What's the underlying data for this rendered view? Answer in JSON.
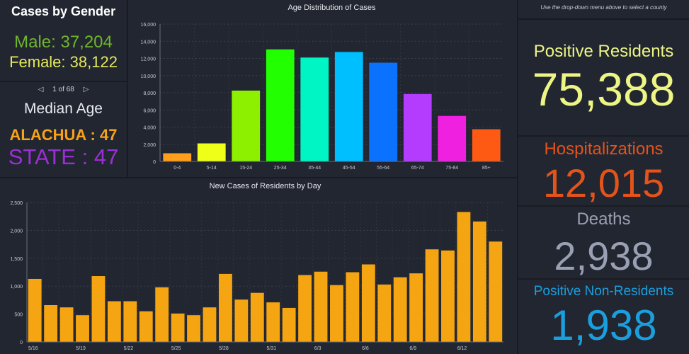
{
  "gender": {
    "title": "Cases by Gender",
    "male": "Male: 37,204",
    "female": "Female: 38,122",
    "male_color": "#6fb52d",
    "female_color": "#e3e85a"
  },
  "median": {
    "pager": "1 of 68",
    "title": "Median Age",
    "county": "ALACHUA : 47",
    "state": "STATE : 47",
    "county_color": "#f7a21b",
    "state_color": "#9b2fd6"
  },
  "right": {
    "hint": "Use the drop-down menu above to select a county",
    "positive_title": "Positive Residents",
    "positive_value": "75,388",
    "hosp_title": "Hospitalizations",
    "hosp_value": "12,015",
    "deaths_title": "Deaths",
    "deaths_value": "2,938",
    "nonres_title": "Positive Non-Residents",
    "nonres_value": "1,938"
  },
  "chart_data": [
    {
      "type": "bar",
      "title": "Age Distribution of Cases",
      "categories": [
        "0-4",
        "5-14",
        "15-24",
        "25-34",
        "35-44",
        "45-54",
        "55-64",
        "65-74",
        "75-84",
        "85+"
      ],
      "values": [
        950,
        2100,
        8250,
        13050,
        12100,
        12750,
        11500,
        7850,
        5300,
        3750
      ],
      "colors": [
        "#ff9f1c",
        "#f0ff17",
        "#8cf000",
        "#22ff00",
        "#00f5c4",
        "#00bfff",
        "#0a72ff",
        "#b43cff",
        "#f020e0",
        "#ff5a14"
      ],
      "ylim": [
        0,
        16000
      ],
      "yticks": [
        0,
        2000,
        4000,
        6000,
        8000,
        10000,
        12000,
        14000,
        16000
      ],
      "ytick_labels": [
        "0",
        "2,000",
        "4,000",
        "6,000",
        "8,000",
        "10,000",
        "12,000",
        "14,000",
        "16,000"
      ]
    },
    {
      "type": "bar",
      "title": "New Cases of Residents by Day",
      "categories": [
        "5/16",
        "5/17",
        "5/18",
        "5/19",
        "5/20",
        "5/21",
        "5/22",
        "5/23",
        "5/24",
        "5/25",
        "5/26",
        "5/27",
        "5/28",
        "5/29",
        "5/30",
        "5/31",
        "6/1",
        "6/2",
        "6/3",
        "6/4",
        "6/5",
        "6/6",
        "6/7",
        "6/8",
        "6/9",
        "6/10",
        "6/11",
        "6/12",
        "6/13",
        "6/14"
      ],
      "values": [
        1130,
        660,
        620,
        480,
        1180,
        730,
        730,
        550,
        980,
        510,
        480,
        620,
        1220,
        760,
        880,
        710,
        610,
        1200,
        1260,
        1020,
        1250,
        1390,
        1030,
        1160,
        1230,
        1660,
        1640,
        2330,
        2160,
        1800
      ],
      "color": "#f5a511",
      "xtick_labels": [
        "5/16",
        "",
        "",
        "5/19",
        "",
        "",
        "5/22",
        "",
        "",
        "5/25",
        "",
        "",
        "5/28",
        "",
        "",
        "5/31",
        "",
        "",
        "6/3",
        "",
        "",
        "6/6",
        "",
        "",
        "6/9",
        "",
        "",
        "6/12",
        "",
        ""
      ],
      "ylim": [
        0,
        2500
      ],
      "yticks": [
        0,
        500,
        1000,
        1500,
        2000,
        2500
      ],
      "ytick_labels": [
        "0",
        "500",
        "1,000",
        "1,500",
        "2,000",
        "2,500"
      ]
    }
  ]
}
